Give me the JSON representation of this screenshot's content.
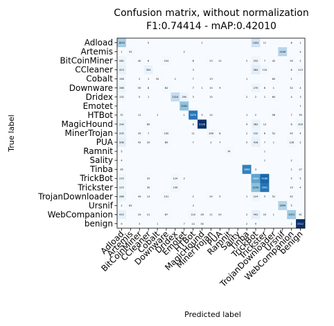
{
  "chart_data": {
    "type": "heatmap",
    "title": "Confusion matrix, without normalization",
    "subtitle": "F1:0.74414 - mAP:0.42010",
    "xlabel": "Predicted label",
    "ylabel": "True label",
    "colormap": "Blues",
    "vmax": 5312,
    "labels": [
      "Adload",
      "Artemis",
      "BitCoinMiner",
      "CCleaner",
      "Cobalt",
      "Downware",
      "Dridex",
      "Emotet",
      "HTBot",
      "MagicHound",
      "MinerTrojan",
      "PUA",
      "Ramnit",
      "Sality",
      "Tinba",
      "TrickBot",
      "Trickster",
      "TrojanDownloader",
      "Ursnif",
      "WebCompanion",
      "benign"
    ],
    "x_tick_labels": [
      "Adload",
      "Artemis",
      "BitCoinMiner",
      "CCleaner",
      "Cobalt",
      "Downware",
      "Dridex",
      "Emotet",
      "HTBot",
      "MagicHound",
      "MinerTrojan",
      "PUA",
      "Ramnit",
      "Sality",
      "Tinba",
      "TrickBot",
      "Trickster",
      "TrojanDownloader",
      "Ursnif",
      "WebCompanion",
      "benign"
    ],
    "matrix": [
      [
        1833,
        0,
        0,
        5,
        0,
        0,
        0,
        0,
        0,
        1,
        0,
        0,
        0,
        0,
        0,
        1002,
        11,
        0,
        0,
        6,
        1
      ],
      [
        1,
        92,
        0,
        0,
        0,
        0,
        0,
        2,
        0,
        0,
        0,
        0,
        0,
        0,
        0,
        0,
        0,
        0,
        1549,
        0,
        4
      ],
      [
        262,
        0,
        40,
        6,
        0,
        104,
        0,
        0,
        8,
        0,
        23,
        12,
        0,
        0,
        2,
        252,
        7,
        42,
        0,
        55,
        2
      ],
      [
        423,
        0,
        0,
        394,
        0,
        0,
        0,
        0,
        3,
        0,
        0,
        0,
        0,
        0,
        0,
        564,
        120,
        0,
        0,
        6,
        113
      ],
      [
        156,
        0,
        2,
        1,
        34,
        0,
        1,
        0,
        7,
        0,
        13,
        0,
        0,
        0,
        1,
        0,
        0,
        60,
        0,
        1,
        0
      ],
      [
        268,
        0,
        30,
        8,
        0,
        84,
        0,
        0,
        7,
        1,
        10,
        9,
        0,
        0,
        0,
        270,
        6,
        1,
        0,
        52,
        4
      ],
      [
        132,
        0,
        5,
        1,
        0,
        0,
        1324,
        290,
        3,
        0,
        15,
        0,
        0,
        0,
        2,
        2,
        1,
        60,
        0,
        4,
        3
      ],
      [
        0,
        0,
        0,
        0,
        0,
        0,
        0,
        2181,
        0,
        0,
        0,
        0,
        0,
        0,
        0,
        0,
        0,
        0,
        0,
        0,
        1
      ],
      [
        72,
        0,
        11,
        0,
        1,
        0,
        0,
        1,
        3876,
        5,
        14,
        0,
        0,
        0,
        1,
        2,
        0,
        56,
        0,
        7,
        39
      ],
      [
        294,
        0,
        0,
        69,
        0,
        0,
        0,
        0,
        8,
        5326,
        0,
        0,
        0,
        0,
        4,
        363,
        13,
        0,
        0,
        6,
        209
      ],
      [
        295,
        0,
        39,
        7,
        0,
        100,
        0,
        0,
        11,
        0,
        148,
        8,
        0,
        0,
        2,
        232,
        6,
        52,
        0,
        42,
        4
      ],
      [
        508,
        0,
        42,
        20,
        0,
        89,
        0,
        0,
        7,
        0,
        2,
        7,
        0,
        0,
        3,
        416,
        7,
        1,
        0,
        128,
        2
      ],
      [
        5,
        0,
        0,
        0,
        0,
        0,
        0,
        0,
        0,
        0,
        0,
        0,
        74,
        0,
        0,
        0,
        1,
        0,
        0,
        0,
        0
      ],
      [
        4,
        0,
        0,
        0,
        0,
        0,
        0,
        0,
        0,
        0,
        0,
        0,
        0,
        0,
        0,
        0,
        1,
        0,
        0,
        2,
        0
      ],
      [
        26,
        0,
        0,
        0,
        0,
        0,
        0,
        0,
        0,
        0,
        0,
        0,
        0,
        0,
        3668,
        3,
        0,
        0,
        0,
        1,
        27
      ],
      [
        215,
        0,
        0,
        25,
        0,
        0,
        124,
        2,
        0,
        0,
        0,
        0,
        0,
        0,
        0,
        2890,
        4188,
        0,
        0,
        5,
        5
      ],
      [
        225,
        0,
        0,
        30,
        0,
        0,
        149,
        0,
        0,
        0,
        0,
        0,
        0,
        0,
        0,
        2239,
        3902,
        0,
        0,
        10,
        4
      ],
      [
        286,
        0,
        49,
        13,
        0,
        101,
        0,
        0,
        2,
        0,
        24,
        5,
        0,
        0,
        1,
        224,
        5,
        52,
        0,
        42,
        0
      ],
      [
        2,
        82,
        0,
        0,
        0,
        0,
        0,
        0,
        3,
        0,
        0,
        0,
        0,
        0,
        0,
        0,
        0,
        0,
        1604,
        5,
        0
      ],
      [
        415,
        0,
        33,
        21,
        0,
        87,
        0,
        0,
        110,
        26,
        11,
        20,
        0,
        0,
        2,
        441,
        10,
        1,
        0,
        1915,
        61
      ],
      [
        9,
        0,
        3,
        0,
        1,
        0,
        0,
        7,
        14,
        30,
        0,
        0,
        0,
        0,
        2,
        9,
        0,
        0,
        0,
        2,
        5312
      ]
    ]
  }
}
